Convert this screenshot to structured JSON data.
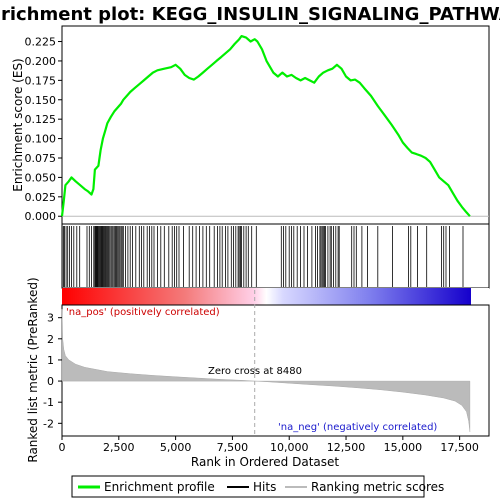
{
  "chart_data": {
    "type": "line",
    "title": "Enrichment plot: KEGG_INSULIN_SIGNALING_PATHWAY",
    "xlabel": "Rank in Ordered Dataset",
    "es_ylabel": "Enrichment score (ES)",
    "metric_ylabel": "Ranked list metric (PreRanked)",
    "xlim": [
      0,
      18000
    ],
    "x_ticks": [
      0,
      2500,
      5000,
      7500,
      10000,
      12500,
      15000,
      17500
    ],
    "x_tick_labels": [
      "0",
      "2,500",
      "5,000",
      "7,500",
      "10,000",
      "12,500",
      "15,000",
      "17,500"
    ],
    "es_ylim": [
      -0.01,
      0.245
    ],
    "es_ticks": [
      0.0,
      0.025,
      0.05,
      0.075,
      0.1,
      0.125,
      0.15,
      0.175,
      0.2,
      0.225
    ],
    "es_tick_labels": [
      "0.000",
      "0.025",
      "0.050",
      "0.075",
      "0.100",
      "0.125",
      "0.150",
      "0.175",
      "0.200",
      "0.225"
    ],
    "metric_ylim": [
      -2.6,
      3.6
    ],
    "metric_ticks": [
      3,
      2,
      1,
      0,
      -1,
      -2
    ],
    "metric_tick_labels": [
      "3",
      "2",
      "1",
      "0",
      "-1",
      "-2"
    ],
    "enrichment_profile": {
      "color": "#00ee00",
      "x": [
        0,
        80,
        150,
        300,
        420,
        600,
        800,
        1000,
        1150,
        1300,
        1380,
        1450,
        1600,
        1700,
        1800,
        1900,
        2000,
        2150,
        2300,
        2450,
        2600,
        2700,
        2850,
        3000,
        3200,
        3400,
        3600,
        3800,
        4000,
        4200,
        4500,
        4800,
        5000,
        5200,
        5400,
        5600,
        5800,
        6000,
        6200,
        6400,
        6600,
        6800,
        7000,
        7200,
        7400,
        7600,
        7800,
        7900,
        8100,
        8300,
        8480,
        8600,
        8800,
        9000,
        9300,
        9500,
        9700,
        9900,
        10100,
        10300,
        10500,
        10700,
        10900,
        11100,
        11300,
        11500,
        11700,
        11900,
        12100,
        12300,
        12500,
        12700,
        12900,
        13100,
        13300,
        13600,
        13900,
        14200,
        14500,
        14800,
        15000,
        15200,
        15400,
        15600,
        15800,
        16000,
        16200,
        16400,
        16600,
        16800,
        17000,
        17200,
        17400,
        17600,
        17800,
        17950
      ],
      "y": [
        0.0,
        0.02,
        0.04,
        0.045,
        0.05,
        0.045,
        0.04,
        0.035,
        0.032,
        0.028,
        0.035,
        0.06,
        0.065,
        0.085,
        0.1,
        0.11,
        0.12,
        0.128,
        0.135,
        0.14,
        0.145,
        0.15,
        0.155,
        0.16,
        0.165,
        0.17,
        0.175,
        0.18,
        0.185,
        0.188,
        0.19,
        0.192,
        0.195,
        0.19,
        0.182,
        0.178,
        0.176,
        0.18,
        0.185,
        0.19,
        0.195,
        0.2,
        0.205,
        0.21,
        0.215,
        0.222,
        0.228,
        0.232,
        0.23,
        0.225,
        0.228,
        0.225,
        0.215,
        0.2,
        0.185,
        0.18,
        0.185,
        0.18,
        0.182,
        0.178,
        0.175,
        0.178,
        0.175,
        0.172,
        0.18,
        0.185,
        0.188,
        0.19,
        0.195,
        0.19,
        0.18,
        0.175,
        0.176,
        0.172,
        0.165,
        0.155,
        0.142,
        0.13,
        0.118,
        0.105,
        0.095,
        0.088,
        0.082,
        0.08,
        0.078,
        0.075,
        0.07,
        0.06,
        0.05,
        0.045,
        0.04,
        0.03,
        0.02,
        0.012,
        0.005,
        0.0
      ]
    },
    "zero_cross_label": "Zero cross at 8480",
    "zero_cross": 8480,
    "na_pos_label": "'na_pos' (positively correlated)",
    "na_neg_label": "'na_neg' (negatively correlated)",
    "legend": {
      "placement": "bottom",
      "entries": [
        {
          "label": "Enrichment profile",
          "color": "#00ee00"
        },
        {
          "label": "Hits",
          "color": "#000000"
        },
        {
          "label": "Ranking metric scores",
          "color": "#bbbbbb"
        }
      ]
    },
    "metric_curve": {
      "color": "#bbbbbb",
      "x": [
        0,
        30,
        80,
        150,
        300,
        600,
        1000,
        2000,
        3000,
        4000,
        5000,
        6000,
        7000,
        8000,
        8480,
        9000,
        10000,
        11000,
        12000,
        13000,
        14000,
        15000,
        16000,
        16800,
        17300,
        17600,
        17800,
        17900,
        17950
      ],
      "y": [
        3.4,
        2.0,
        1.5,
        1.2,
        1.0,
        0.8,
        0.65,
        0.45,
        0.35,
        0.27,
        0.2,
        0.14,
        0.08,
        0.03,
        0.0,
        -0.03,
        -0.1,
        -0.17,
        -0.24,
        -0.32,
        -0.41,
        -0.52,
        -0.66,
        -0.8,
        -0.95,
        -1.15,
        -1.45,
        -1.9,
        -2.4
      ]
    },
    "hits": [
      10,
      60,
      110,
      180,
      250,
      330,
      420,
      520,
      650,
      780,
      1100,
      1200,
      1300,
      1400,
      1450,
      1480,
      1510,
      1540,
      1570,
      1600,
      1640,
      1680,
      1720,
      1760,
      1800,
      1840,
      1880,
      1920,
      1960,
      2000,
      2050,
      2100,
      2150,
      2200,
      2250,
      2300,
      2350,
      2400,
      2450,
      2500,
      2550,
      2600,
      2650,
      2700,
      2800,
      2900,
      3000,
      3100,
      3250,
      3400,
      3500,
      3600,
      3750,
      3850,
      3950,
      4050,
      4200,
      4350,
      4500,
      4700,
      4850,
      4950,
      5050,
      5150,
      5350,
      5600,
      5750,
      5900,
      6050,
      6200,
      6350,
      6500,
      6700,
      6850,
      6950,
      7050,
      7200,
      7300,
      7450,
      7550,
      7650,
      7750,
      7800,
      7850,
      7900,
      8000,
      8100,
      8200,
      8350,
      8550,
      9650,
      9750,
      9850,
      10000,
      10100,
      10200,
      10350,
      10500,
      10650,
      10800,
      11000,
      11150,
      11250,
      11350,
      11400,
      11450,
      11500,
      11550,
      11600,
      11700,
      11800,
      11850,
      11950,
      12050,
      12150,
      12200,
      12750,
      12850,
      12950,
      13200,
      13450,
      13900,
      14550,
      15250,
      15350,
      15650,
      16050,
      16700,
      16800,
      16900,
      17050,
      17650
    ]
  }
}
